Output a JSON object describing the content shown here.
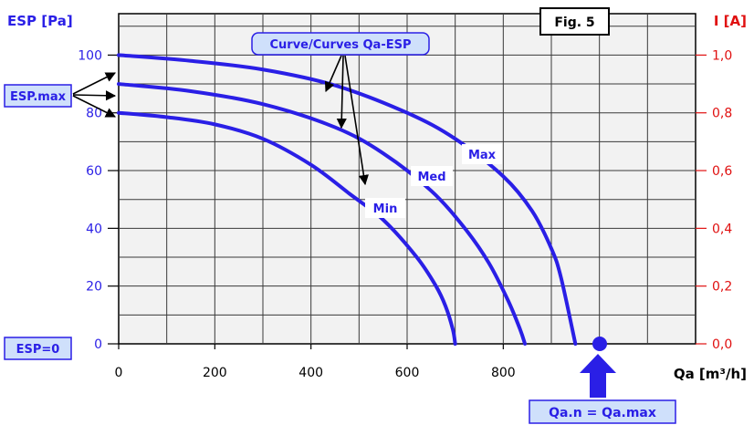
{
  "chart_data": {
    "type": "line",
    "title": "Fig. 5",
    "xlabel": "Qa [m³/h]",
    "ylabel": "ESP [Pa]",
    "y2label": "I [A]",
    "xlim": [
      0,
      1200
    ],
    "ylim": [
      0,
      100
    ],
    "y2lim": [
      0.0,
      1.0
    ],
    "x_ticks": [
      "0",
      "200",
      "400",
      "600",
      "800"
    ],
    "y_ticks": [
      "0",
      "20",
      "40",
      "60",
      "80",
      "100"
    ],
    "y2_ticks": [
      "0,0",
      "0,2",
      "0,4",
      "0,6",
      "0,8",
      "1,0"
    ],
    "grid": true,
    "series": [
      {
        "name": "Max",
        "color": "#2a1fe6",
        "x": [
          0,
          150,
          300,
          450,
          600,
          700,
          800,
          860,
          900,
          920,
          950
        ],
        "y": [
          100,
          98,
          95,
          89.5,
          80,
          71,
          58,
          46,
          33,
          23,
          0
        ]
      },
      {
        "name": "Med",
        "color": "#2a1fe6",
        "x": [
          0,
          150,
          300,
          450,
          550,
          650,
          720,
          770,
          810,
          835,
          845
        ],
        "y": [
          90,
          87.5,
          83,
          75,
          66,
          53,
          40,
          28,
          15,
          5,
          0
        ]
      },
      {
        "name": "Min",
        "color": "#2a1fe6",
        "x": [
          0,
          100,
          200,
          300,
          400,
          480,
          550,
          620,
          660,
          680,
          695,
          700
        ],
        "y": [
          80,
          78.5,
          76,
          71,
          62,
          52,
          43,
          30,
          20,
          13,
          5,
          0
        ]
      }
    ],
    "annotations": {
      "curves_label": "Curve/Curves Qa-ESP",
      "esp_max": "ESP.max",
      "esp_zero": "ESP=0",
      "qa_label": "Qa.n = Qa.max",
      "max_label": "Max",
      "med_label": "Med",
      "min_label": "Min"
    },
    "colors": {
      "left_axis": "#2a1fe6",
      "right_axis": "#e01010",
      "curve": "#2a1fe6",
      "box_fill": "#cfe0fb",
      "grid": "#3a3a3a",
      "background": "#f2f2f2"
    }
  }
}
